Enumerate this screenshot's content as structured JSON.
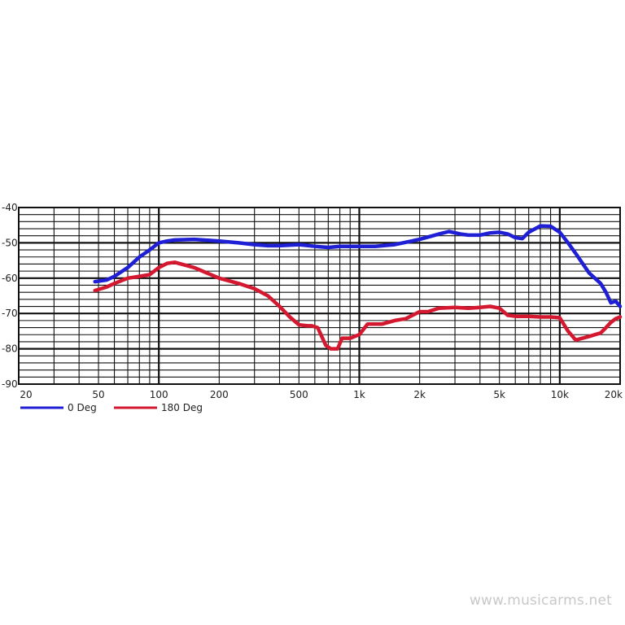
{
  "chart_data": {
    "type": "line",
    "xscale": "log",
    "xlim": [
      20,
      20000
    ],
    "ylim": [
      -90,
      -40
    ],
    "x_ticks": [
      "20",
      "50",
      "100",
      "200",
      "500",
      "1k",
      "2k",
      "5k",
      "10k",
      "20k"
    ],
    "y_ticks": [
      "-40",
      "-50",
      "-60",
      "-70",
      "-80",
      "-90"
    ],
    "grid": true,
    "legend_position": "bottom-left",
    "series": [
      {
        "name": "0 Deg",
        "color": "#1f1fd6",
        "x": [
          48,
          55,
          60,
          70,
          80,
          90,
          100,
          110,
          120,
          150,
          200,
          250,
          300,
          350,
          400,
          500,
          600,
          700,
          800,
          1000,
          1200,
          1500,
          2000,
          2500,
          2800,
          3200,
          3500,
          4000,
          4500,
          5000,
          5500,
          6000,
          6500,
          7000,
          8000,
          9000,
          10000,
          11000,
          12000,
          14000,
          16000,
          17000,
          18000,
          19000,
          20000
        ],
        "values": [
          -61,
          -60.5,
          -59.5,
          -57,
          -54,
          -52,
          -50,
          -49.5,
          -49.2,
          -49,
          -49.5,
          -50,
          -50.5,
          -50.8,
          -50.8,
          -50.5,
          -51,
          -51.3,
          -51,
          -51,
          -51,
          -50.5,
          -49,
          -47.5,
          -46.8,
          -47.5,
          -47.8,
          -47.8,
          -47.2,
          -47,
          -47.5,
          -48.5,
          -48.8,
          -47,
          -45.2,
          -45.3,
          -47,
          -50,
          -53,
          -58.5,
          -61.5,
          -64,
          -67,
          -66.5,
          -68
        ]
      },
      {
        "name": "180 Deg",
        "color": "#d3182f",
        "x": [
          48,
          55,
          60,
          70,
          80,
          90,
          100,
          110,
          120,
          150,
          200,
          250,
          300,
          350,
          400,
          450,
          500,
          550,
          580,
          620,
          680,
          720,
          780,
          820,
          900,
          1000,
          1100,
          1200,
          1300,
          1500,
          1700,
          2000,
          2200,
          2500,
          3000,
          3500,
          4000,
          4500,
          5000,
          5500,
          6000,
          7000,
          8000,
          9000,
          10000,
          11000,
          12000,
          13000,
          14000,
          15000,
          16000,
          17000,
          18000,
          19000,
          20000
        ],
        "values": [
          -63.5,
          -62.5,
          -61.5,
          -60,
          -59.5,
          -59,
          -57,
          -55.8,
          -55.5,
          -57,
          -60,
          -61.5,
          -63,
          -65,
          -68,
          -71,
          -73.2,
          -73.5,
          -73.5,
          -74,
          -79,
          -80,
          -80,
          -77,
          -77,
          -76,
          -73,
          -73,
          -73,
          -72,
          -71.5,
          -69.5,
          -69.5,
          -68.5,
          -68.3,
          -68.5,
          -68.3,
          -68,
          -68.5,
          -70.5,
          -70.8,
          -70.8,
          -71,
          -71,
          -71.2,
          -75,
          -77.5,
          -77,
          -76.5,
          -76,
          -75.5,
          -74,
          -72.5,
          -71.5,
          -71
        ]
      }
    ]
  },
  "watermark": "www.musicarms.net"
}
